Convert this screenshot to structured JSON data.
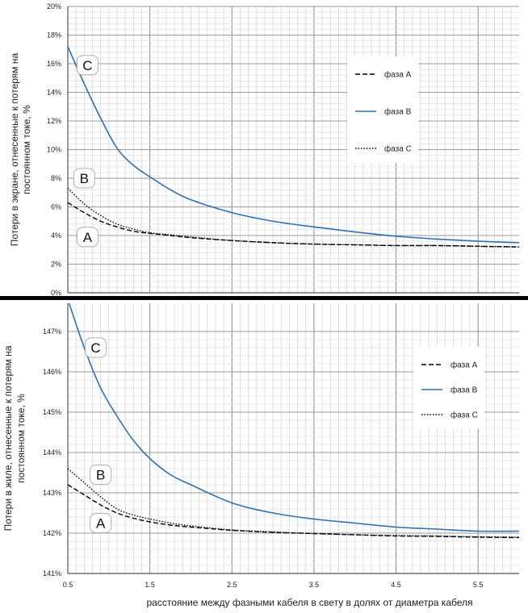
{
  "chart_data": [
    {
      "type": "line",
      "title": "",
      "ylabel_lines": [
        "Потери в экране, отнесенные к потерям на",
        "постоянном токе, %"
      ],
      "ylim": [
        0,
        20
      ],
      "yticks": [
        0,
        2,
        4,
        6,
        8,
        10,
        12,
        14,
        16,
        18,
        20
      ],
      "ytick_labels": [
        "0%",
        "2%",
        "4%",
        "6%",
        "8%",
        "10%",
        "12%",
        "14%",
        "16%",
        "18%",
        "20%"
      ],
      "xlim": [
        0.5,
        6.0
      ],
      "x": [
        0.5,
        0.7,
        0.9,
        1.1,
        1.3,
        1.5,
        1.75,
        2.0,
        2.5,
        3.0,
        3.5,
        4.0,
        4.5,
        5.0,
        5.5,
        6.0
      ],
      "grid": true,
      "legend_position": "right",
      "series": [
        {
          "name": "фаза А",
          "style": "dashed",
          "color": "#000000",
          "values": [
            6.3,
            5.6,
            5.0,
            4.6,
            4.3,
            4.15,
            4.0,
            3.85,
            3.65,
            3.5,
            3.4,
            3.35,
            3.3,
            3.3,
            3.25,
            3.2
          ]
        },
        {
          "name": "фаза В",
          "style": "solid",
          "color": "#2f6fb4",
          "values": [
            17.2,
            14.6,
            12.2,
            10.1,
            8.9,
            8.1,
            7.2,
            6.5,
            5.6,
            5.0,
            4.6,
            4.25,
            3.95,
            3.75,
            3.6,
            3.5
          ]
        },
        {
          "name": "фаза С",
          "style": "dotted",
          "color": "#000000",
          "values": [
            7.3,
            6.2,
            5.4,
            4.8,
            4.45,
            4.2,
            4.05,
            3.9,
            3.65,
            3.5,
            3.4,
            3.35,
            3.3,
            3.3,
            3.25,
            3.2
          ]
        }
      ],
      "callouts": [
        {
          "text": "C",
          "x": 0.74,
          "y": 15.9
        },
        {
          "text": "B",
          "x": 0.7,
          "y": 8.0
        },
        {
          "text": "A",
          "x": 0.74,
          "y": 3.9
        }
      ]
    },
    {
      "type": "line",
      "title": "",
      "ylabel_lines": [
        "Потери в жиле, отнесенные к потерям на",
        "постоянном токе, %"
      ],
      "ylim": [
        141,
        147.7
      ],
      "yticks": [
        141,
        142,
        143,
        144,
        145,
        146,
        147
      ],
      "ytick_labels": [
        "141%",
        "142%",
        "143%",
        "144%",
        "145%",
        "146%",
        "147%"
      ],
      "xlim": [
        0.5,
        6.0
      ],
      "xticks": [
        0.5,
        1.5,
        2.5,
        3.5,
        4.5,
        5.5
      ],
      "xtick_labels": [
        "0.5",
        "1.5",
        "2.5",
        "3.5",
        "4.5",
        "5.5"
      ],
      "xlabel": "расстояние между фазными кабеля в свету в долях от диаметра кабеля",
      "x": [
        0.5,
        0.7,
        0.9,
        1.1,
        1.3,
        1.5,
        1.75,
        2.0,
        2.5,
        3.0,
        3.5,
        4.0,
        4.5,
        5.0,
        5.5,
        6.0
      ],
      "grid": true,
      "legend_position": "right",
      "series": [
        {
          "name": "фаза А",
          "style": "dashed",
          "color": "#000000",
          "values": [
            143.2,
            142.95,
            142.7,
            142.5,
            142.37,
            142.28,
            142.2,
            142.15,
            142.07,
            142.02,
            141.99,
            141.96,
            141.93,
            141.92,
            141.9,
            141.89
          ]
        },
        {
          "name": "фаза В",
          "style": "solid",
          "color": "#2f6fb4",
          "values": [
            147.8,
            146.6,
            145.6,
            144.9,
            144.3,
            143.85,
            143.45,
            143.2,
            142.75,
            142.5,
            142.35,
            142.25,
            142.15,
            142.1,
            142.05,
            142.05
          ]
        },
        {
          "name": "фаза С",
          "style": "dotted",
          "color": "#000000",
          "values": [
            143.6,
            143.25,
            142.9,
            142.6,
            142.45,
            142.35,
            142.25,
            142.18,
            142.08,
            142.03,
            141.99,
            141.96,
            141.94,
            141.93,
            141.91,
            141.9
          ]
        }
      ],
      "callouts": [
        {
          "text": "C",
          "x": 0.84,
          "y": 146.6
        },
        {
          "text": "B",
          "x": 0.9,
          "y": 143.45
        },
        {
          "text": "A",
          "x": 0.9,
          "y": 142.25
        }
      ]
    }
  ]
}
